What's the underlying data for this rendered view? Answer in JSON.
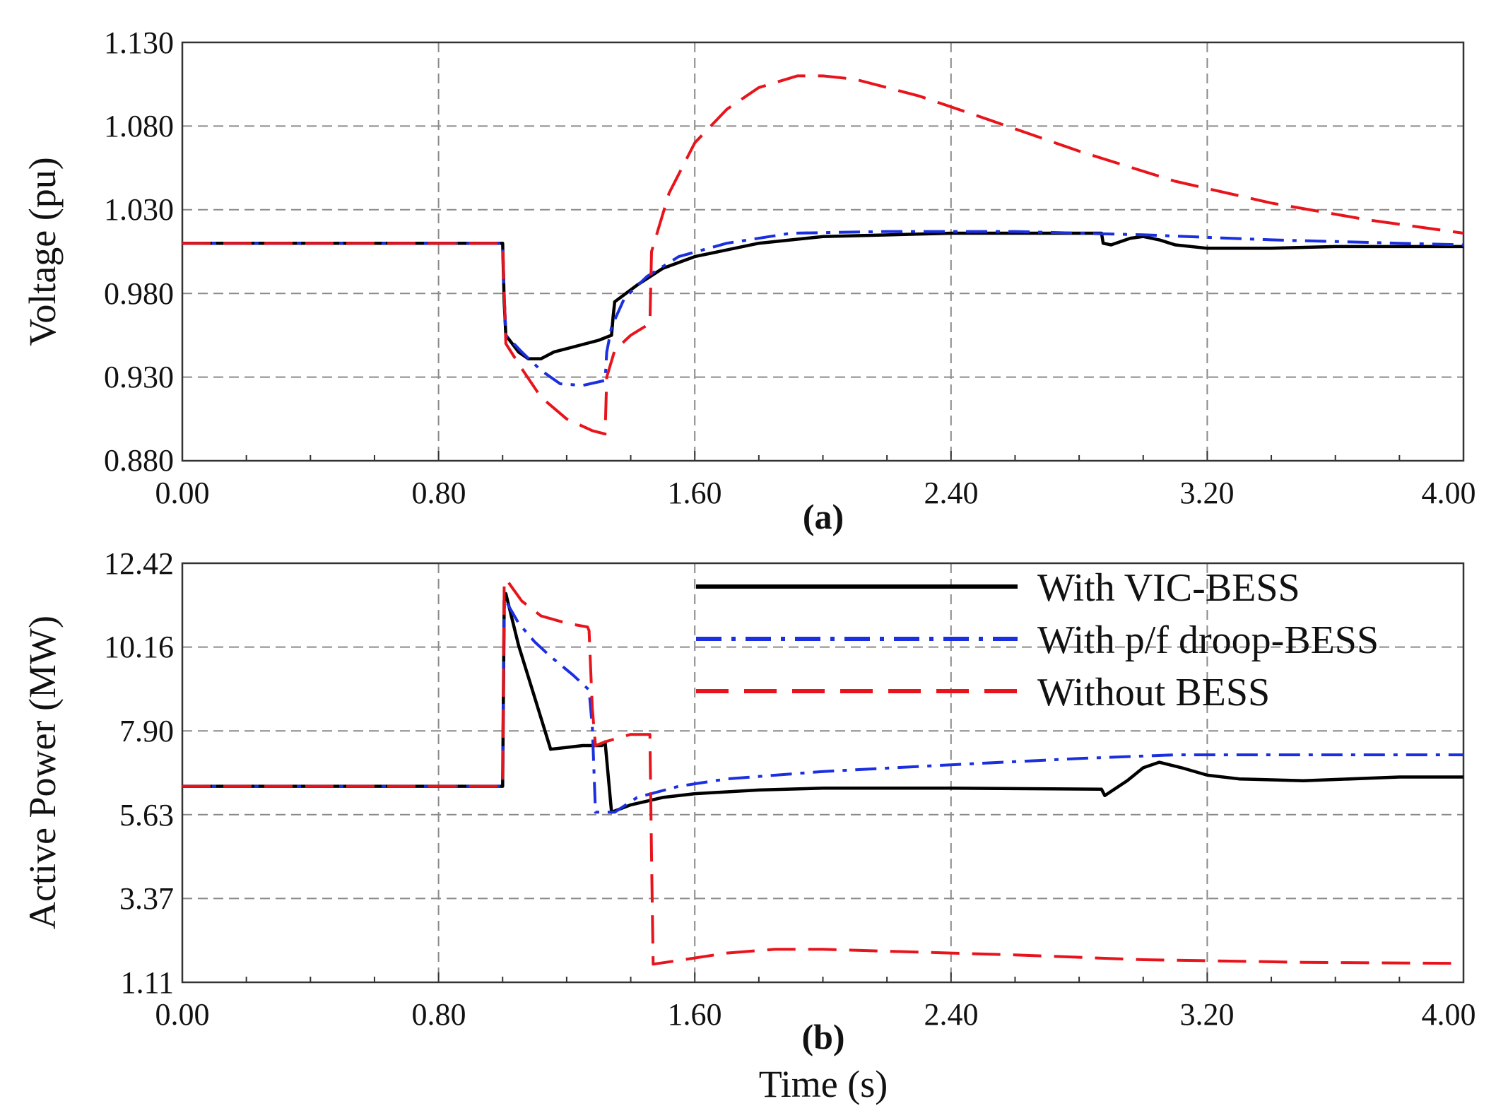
{
  "chart_data": [
    {
      "id": "a",
      "type": "line",
      "panel_label": "(a)",
      "xlabel": "",
      "ylabel": "Voltage (pu)",
      "xlim": [
        0,
        4
      ],
      "ylim": [
        0.88,
        1.13
      ],
      "xticks": [
        "0.00",
        "0.80",
        "1.60",
        "2.40",
        "3.20",
        "4.00"
      ],
      "yticks": [
        "1.130",
        "1.080",
        "1.030",
        "0.980",
        "0.930",
        "0.880"
      ],
      "grid": true,
      "series": [
        {
          "name": "With VIC-BESS",
          "color": "#000000",
          "style": "solid",
          "points": [
            [
              0,
              1.01
            ],
            [
              1.0,
              1.01
            ],
            [
              1.005,
              0.975
            ],
            [
              1.01,
              0.955
            ],
            [
              1.05,
              0.945
            ],
            [
              1.08,
              0.941
            ],
            [
              1.12,
              0.941
            ],
            [
              1.16,
              0.945
            ],
            [
              1.22,
              0.948
            ],
            [
              1.3,
              0.952
            ],
            [
              1.34,
              0.955
            ],
            [
              1.345,
              0.966
            ],
            [
              1.35,
              0.975
            ],
            [
              1.42,
              0.985
            ],
            [
              1.5,
              0.995
            ],
            [
              1.6,
              1.002
            ],
            [
              1.8,
              1.01
            ],
            [
              2.0,
              1.014
            ],
            [
              2.4,
              1.016
            ],
            [
              2.8,
              1.016
            ],
            [
              2.87,
              1.016
            ],
            [
              2.875,
              1.01
            ],
            [
              2.9,
              1.009
            ],
            [
              2.96,
              1.013
            ],
            [
              3.0,
              1.014
            ],
            [
              3.05,
              1.012
            ],
            [
              3.1,
              1.009
            ],
            [
              3.2,
              1.007
            ],
            [
              3.4,
              1.007
            ],
            [
              3.6,
              1.008
            ],
            [
              4.0,
              1.008
            ]
          ]
        },
        {
          "name": "With p/f droop-BESS",
          "color": "#1a2fe0",
          "style": "dashdot",
          "points": [
            [
              0,
              1.01
            ],
            [
              1.0,
              1.01
            ],
            [
              1.005,
              0.98
            ],
            [
              1.01,
              0.955
            ],
            [
              1.06,
              0.945
            ],
            [
              1.12,
              0.934
            ],
            [
              1.18,
              0.926
            ],
            [
              1.25,
              0.925
            ],
            [
              1.32,
              0.928
            ],
            [
              1.325,
              0.945
            ],
            [
              1.34,
              0.96
            ],
            [
              1.38,
              0.977
            ],
            [
              1.45,
              0.99
            ],
            [
              1.55,
              1.002
            ],
            [
              1.7,
              1.01
            ],
            [
              1.9,
              1.016
            ],
            [
              2.2,
              1.017
            ],
            [
              2.6,
              1.017
            ],
            [
              3.0,
              1.015
            ],
            [
              3.4,
              1.012
            ],
            [
              3.8,
              1.01
            ],
            [
              4.0,
              1.009
            ]
          ]
        },
        {
          "name": "Without BESS",
          "color": "#e8141c",
          "style": "dashed",
          "points": [
            [
              0,
              1.01
            ],
            [
              1.0,
              1.01
            ],
            [
              1.01,
              0.95
            ],
            [
              1.06,
              0.935
            ],
            [
              1.12,
              0.918
            ],
            [
              1.2,
              0.905
            ],
            [
              1.28,
              0.898
            ],
            [
              1.32,
              0.896
            ],
            [
              1.325,
              0.93
            ],
            [
              1.35,
              0.946
            ],
            [
              1.4,
              0.955
            ],
            [
              1.46,
              0.962
            ],
            [
              1.465,
              1.005
            ],
            [
              1.52,
              1.04
            ],
            [
              1.6,
              1.07
            ],
            [
              1.7,
              1.09
            ],
            [
              1.8,
              1.103
            ],
            [
              1.92,
              1.11
            ],
            [
              2.0,
              1.11
            ],
            [
              2.1,
              1.108
            ],
            [
              2.3,
              1.098
            ],
            [
              2.5,
              1.085
            ],
            [
              2.8,
              1.065
            ],
            [
              3.1,
              1.047
            ],
            [
              3.4,
              1.034
            ],
            [
              3.7,
              1.024
            ],
            [
              4.0,
              1.016
            ]
          ]
        }
      ]
    },
    {
      "id": "b",
      "type": "line",
      "panel_label": "(b)",
      "xlabel": "Time (s)",
      "ylabel": "Active Power (MW)",
      "xlim": [
        0,
        4
      ],
      "ylim": [
        1.11,
        12.42
      ],
      "xticks": [
        "0.00",
        "0.80",
        "1.60",
        "2.40",
        "3.20",
        "4.00"
      ],
      "yticks": [
        "12.42",
        "10.16",
        "7.90",
        "5.63",
        "3.37",
        "1.11"
      ],
      "grid": true,
      "legend_position": "top-right",
      "series": [
        {
          "name": "With VIC-BESS",
          "color": "#000000",
          "style": "solid",
          "points": [
            [
              0,
              6.4
            ],
            [
              1.0,
              6.4
            ],
            [
              1.005,
              11.4
            ],
            [
              1.01,
              11.6
            ],
            [
              1.05,
              10.2
            ],
            [
              1.1,
              8.8
            ],
            [
              1.15,
              7.4
            ],
            [
              1.2,
              7.45
            ],
            [
              1.25,
              7.5
            ],
            [
              1.31,
              7.5
            ],
            [
              1.32,
              7.6
            ],
            [
              1.34,
              5.7
            ],
            [
              1.4,
              5.9
            ],
            [
              1.5,
              6.1
            ],
            [
              1.6,
              6.2
            ],
            [
              1.8,
              6.3
            ],
            [
              2.0,
              6.35
            ],
            [
              2.4,
              6.35
            ],
            [
              2.87,
              6.32
            ],
            [
              2.88,
              6.15
            ],
            [
              2.95,
              6.55
            ],
            [
              3.0,
              6.9
            ],
            [
              3.05,
              7.05
            ],
            [
              3.12,
              6.9
            ],
            [
              3.2,
              6.7
            ],
            [
              3.3,
              6.6
            ],
            [
              3.5,
              6.55
            ],
            [
              3.8,
              6.65
            ],
            [
              4.0,
              6.65
            ]
          ]
        },
        {
          "name": "With p/f droop-BESS",
          "color": "#1a2fe0",
          "style": "dashdot",
          "points": [
            [
              0,
              6.4
            ],
            [
              1.0,
              6.4
            ],
            [
              1.005,
              11.2
            ],
            [
              1.01,
              11.4
            ],
            [
              1.05,
              10.8
            ],
            [
              1.1,
              10.3
            ],
            [
              1.15,
              9.9
            ],
            [
              1.22,
              9.4
            ],
            [
              1.27,
              9.0
            ],
            [
              1.28,
              8.0
            ],
            [
              1.29,
              5.7
            ],
            [
              1.35,
              5.7
            ],
            [
              1.42,
              6.1
            ],
            [
              1.55,
              6.4
            ],
            [
              1.7,
              6.6
            ],
            [
              2.0,
              6.8
            ],
            [
              2.4,
              6.98
            ],
            [
              2.8,
              7.15
            ],
            [
              3.1,
              7.25
            ],
            [
              3.5,
              7.25
            ],
            [
              4.0,
              7.25
            ]
          ]
        },
        {
          "name": "Without BESS",
          "color": "#e8141c",
          "style": "dashed",
          "points": [
            [
              0,
              6.4
            ],
            [
              1.0,
              6.4
            ],
            [
              1.005,
              11.8
            ],
            [
              1.01,
              12.0
            ],
            [
              1.06,
              11.4
            ],
            [
              1.12,
              11.0
            ],
            [
              1.2,
              10.8
            ],
            [
              1.265,
              10.7
            ],
            [
              1.27,
              10.6
            ],
            [
              1.28,
              8.5
            ],
            [
              1.29,
              7.5
            ],
            [
              1.32,
              7.6
            ],
            [
              1.4,
              7.8
            ],
            [
              1.46,
              7.8
            ],
            [
              1.465,
              4.5
            ],
            [
              1.47,
              1.6
            ],
            [
              1.55,
              1.7
            ],
            [
              1.7,
              1.9
            ],
            [
              1.85,
              2.0
            ],
            [
              2.0,
              2.0
            ],
            [
              2.2,
              1.95
            ],
            [
              2.6,
              1.85
            ],
            [
              3.0,
              1.72
            ],
            [
              3.5,
              1.65
            ],
            [
              4.0,
              1.62
            ]
          ]
        }
      ]
    }
  ]
}
